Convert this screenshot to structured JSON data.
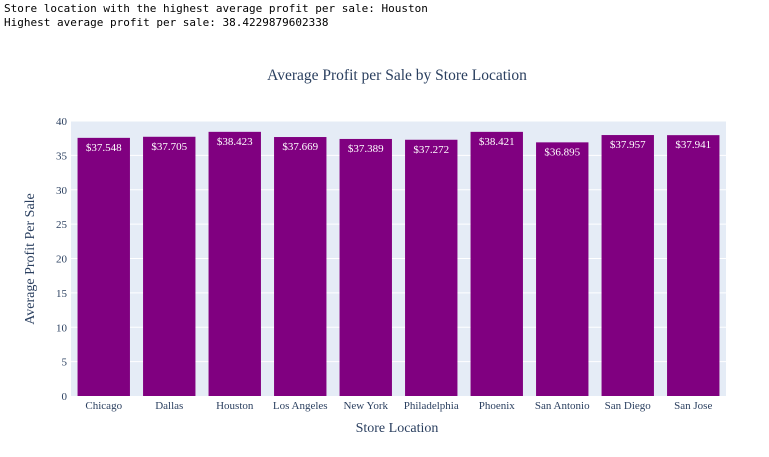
{
  "console": {
    "line1": "Store location with the highest average profit per sale: Houston",
    "line2": "Highest average profit per sale: 38.4229879602338"
  },
  "chart_data": {
    "type": "bar",
    "title": "Average Profit per Sale by Store Location",
    "xlabel": "Store Location",
    "ylabel": "Average Profit Per Sale",
    "categories": [
      "Chicago",
      "Dallas",
      "Houston",
      "Los Angeles",
      "New York",
      "Philadelphia",
      "Phoenix",
      "San Antonio",
      "San Diego",
      "San Jose"
    ],
    "values": [
      37.548,
      37.705,
      38.423,
      37.669,
      37.389,
      37.272,
      38.421,
      36.895,
      37.957,
      37.941
    ],
    "data_labels": [
      "$37.548",
      "$37.705",
      "$38.423",
      "$37.669",
      "$37.389",
      "$37.272",
      "$38.421",
      "$36.895",
      "$37.957",
      "$37.941"
    ],
    "ylim": [
      0,
      40
    ],
    "yticks": [
      0,
      5,
      10,
      15,
      20,
      25,
      30,
      35,
      40
    ],
    "grid": true,
    "colors": {
      "bar": "#800080",
      "plot_bg": "#e5ecf6",
      "grid": "#ffffff",
      "text": "#2a3f5f"
    }
  }
}
